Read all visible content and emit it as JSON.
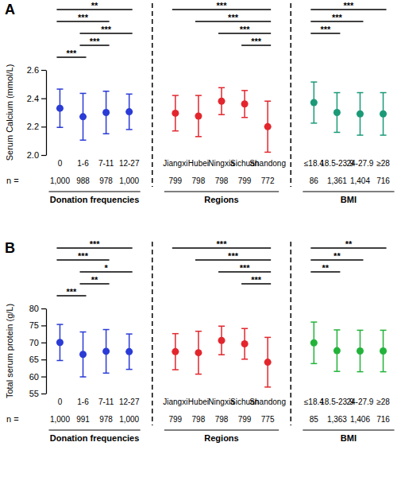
{
  "chart_data": [
    {
      "type": "errorbar",
      "panel_label": "A",
      "ylabel": "Serum Calcium (mmol/L)",
      "ylim": [
        2.0,
        2.6
      ],
      "yticks": [
        {
          "value": 2.0,
          "label": "2.0"
        },
        2.2,
        2.4,
        2.6
      ],
      "n_label": "n =",
      "groups": [
        {
          "name": "Donation frequencies",
          "color": "#2a3bd6",
          "categories": [
            "0",
            "1-6",
            "7-11",
            "12-27"
          ],
          "values": [
            2.33,
            2.27,
            2.3,
            2.305
          ],
          "errors": [
            0.135,
            0.165,
            0.15,
            0.125
          ],
          "n": [
            {
              "value": 1000,
              "label": "1,000"
            },
            988,
            978,
            {
              "value": 1000,
              "label": "1,000"
            }
          ],
          "significance": [
            {
              "from": "0",
              "to": "12-27",
              "label": "**"
            },
            {
              "from": "0",
              "to": "7-11",
              "label": "***"
            },
            {
              "from": "1-6",
              "to": "12-27",
              "label": "***"
            },
            {
              "from": "1-6",
              "to": "7-11",
              "label": "***"
            },
            {
              "from": "0",
              "to": "1-6",
              "label": "***"
            }
          ]
        },
        {
          "name": "Regions",
          "color": "#e3262d",
          "categories": [
            "Jiangxi",
            "Hubei",
            "Ningxia",
            "Sichuan",
            "Shandong"
          ],
          "values": [
            2.295,
            2.275,
            2.38,
            2.36,
            2.2
          ],
          "errors": [
            0.125,
            0.145,
            0.095,
            0.095,
            0.18
          ],
          "n": [
            799,
            798,
            798,
            799,
            772
          ],
          "significance": [
            {
              "from": "Jiangxi",
              "to": "Shandong",
              "label": "***"
            },
            {
              "from": "Hubei",
              "to": "Shandong",
              "label": "***"
            },
            {
              "from": "Ningxia",
              "to": "Shandong",
              "label": "***"
            },
            {
              "from": "Sichuan",
              "to": "Shandong",
              "label": "***"
            }
          ]
        },
        {
          "name": "BMI",
          "color": "#1b9a78",
          "categories": [
            "≤18.4",
            "18.5-23.9",
            "24-27.9",
            "≥28"
          ],
          "values": [
            2.37,
            2.3,
            2.29,
            2.29
          ],
          "errors": [
            0.145,
            0.14,
            0.15,
            0.15
          ],
          "n": [
            86,
            {
              "value": 1361,
              "label": "1,361"
            },
            {
              "value": 1404,
              "label": "1,404"
            },
            716
          ],
          "significance": [
            {
              "from": "≤18.4",
              "to": "≥28",
              "label": "***"
            },
            {
              "from": "≤18.4",
              "to": "24-27.9",
              "label": "***"
            },
            {
              "from": "≤18.4",
              "to": "18.5-23.9",
              "label": "***"
            }
          ]
        }
      ]
    },
    {
      "type": "errorbar",
      "panel_label": "B",
      "ylabel": "Total serum protein (g/L)",
      "ylim": [
        55,
        80
      ],
      "yticks": [
        55,
        60,
        65,
        70,
        75,
        80
      ],
      "n_label": "n =",
      "groups": [
        {
          "name": "Donation frequencies",
          "color": "#2a3bd6",
          "categories": [
            "0",
            "1-6",
            "7-11",
            "12-27"
          ],
          "values": [
            70.0,
            66.5,
            67.4,
            67.3
          ],
          "errors": [
            5.3,
            6.6,
            6.4,
            5.2
          ],
          "n": [
            {
              "value": 1000,
              "label": "1,000"
            },
            991,
            978,
            {
              "value": 1000,
              "label": "1,000"
            }
          ],
          "significance": [
            {
              "from": "0",
              "to": "12-27",
              "label": "***"
            },
            {
              "from": "0",
              "to": "7-11",
              "label": "***"
            },
            {
              "from": "1-6",
              "to": "12-27",
              "label": "*"
            },
            {
              "from": "1-6",
              "to": "7-11",
              "label": "**"
            },
            {
              "from": "0",
              "to": "1-6",
              "label": "***"
            }
          ]
        },
        {
          "name": "Regions",
          "color": "#e3262d",
          "categories": [
            "Jiangxi",
            "Hubei",
            "Ningxia",
            "Sichuan",
            "Shandong"
          ],
          "values": [
            67.3,
            67.0,
            70.6,
            69.6,
            64.2
          ],
          "errors": [
            5.3,
            6.3,
            4.2,
            4.5,
            7.3
          ],
          "n": [
            799,
            798,
            798,
            799,
            775
          ],
          "significance": [
            {
              "from": "Jiangxi",
              "to": "Shandong",
              "label": "***"
            },
            {
              "from": "Hubei",
              "to": "Shandong",
              "label": "***"
            },
            {
              "from": "Ningxia",
              "to": "Shandong",
              "label": "***"
            },
            {
              "from": "Sichuan",
              "to": "Shandong",
              "label": "***"
            }
          ]
        },
        {
          "name": "BMI",
          "color": "#22b33a",
          "categories": [
            "≤18.4",
            "18.5-23.9",
            "24-27.9",
            "≥28"
          ],
          "values": [
            69.9,
            67.6,
            67.5,
            67.5
          ],
          "errors": [
            6.1,
            6.1,
            6.1,
            6.1
          ],
          "n": [
            85,
            {
              "value": 1363,
              "label": "1,363"
            },
            {
              "value": 1406,
              "label": "1,406"
            },
            716
          ],
          "significance": [
            {
              "from": "≤18.4",
              "to": "≥28",
              "label": "**"
            },
            {
              "from": "≤18.4",
              "to": "24-27.9",
              "label": "**"
            },
            {
              "from": "≤18.4",
              "to": "18.5-23.9",
              "label": "**"
            }
          ]
        }
      ]
    }
  ]
}
